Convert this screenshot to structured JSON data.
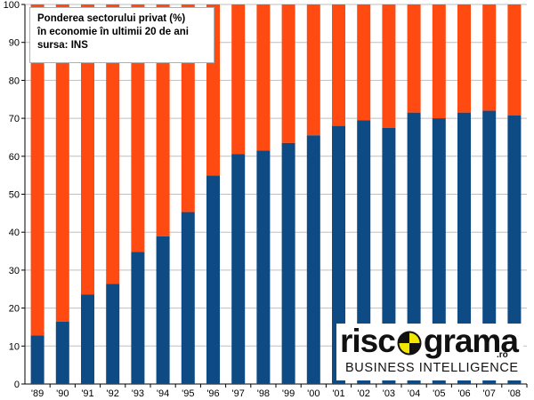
{
  "legend": {
    "line1": "Ponderea sectorului privat (%)",
    "line2": "în economie în ultimii 20 de ani",
    "line3": "sursa: INS"
  },
  "logo": {
    "left_text": "risc",
    "right_text": "grama",
    "suffix": ".ro",
    "tagline": "BUSINESS INTELLIGENCE"
  },
  "colors": {
    "private": "#0e4a84",
    "rest": "#ff4a12",
    "grid": "#bfbfbf",
    "logo_ball": "#f2e600"
  },
  "chart_data": {
    "type": "bar",
    "stacked": true,
    "categories": [
      "'89",
      "'90",
      "'91",
      "'92",
      "'93",
      "'94",
      "'95",
      "'96",
      "'97",
      "'98",
      "'99",
      "'00",
      "'01",
      "'02",
      "'03",
      "'04",
      "'05",
      "'06",
      "'07",
      "'08"
    ],
    "series": [
      {
        "values": [
          12.8,
          16.4,
          23.6,
          26.4,
          34.8,
          38.9,
          45.3,
          54.9,
          60.6,
          61.5,
          63.5,
          65.5,
          68.0,
          69.5,
          67.5,
          71.5,
          70.0,
          71.5,
          72.0,
          70.8
        ]
      },
      {
        "values": [
          87.2,
          83.6,
          76.4,
          73.6,
          65.2,
          61.1,
          54.7,
          45.1,
          39.4,
          38.5,
          36.5,
          34.5,
          32.0,
          30.5,
          32.5,
          28.5,
          30.0,
          28.5,
          28.0,
          29.2
        ]
      }
    ],
    "ylim": [
      0,
      100
    ],
    "yticks": [
      0,
      10,
      20,
      30,
      40,
      50,
      60,
      70,
      80,
      90,
      100
    ],
    "grid": true
  }
}
